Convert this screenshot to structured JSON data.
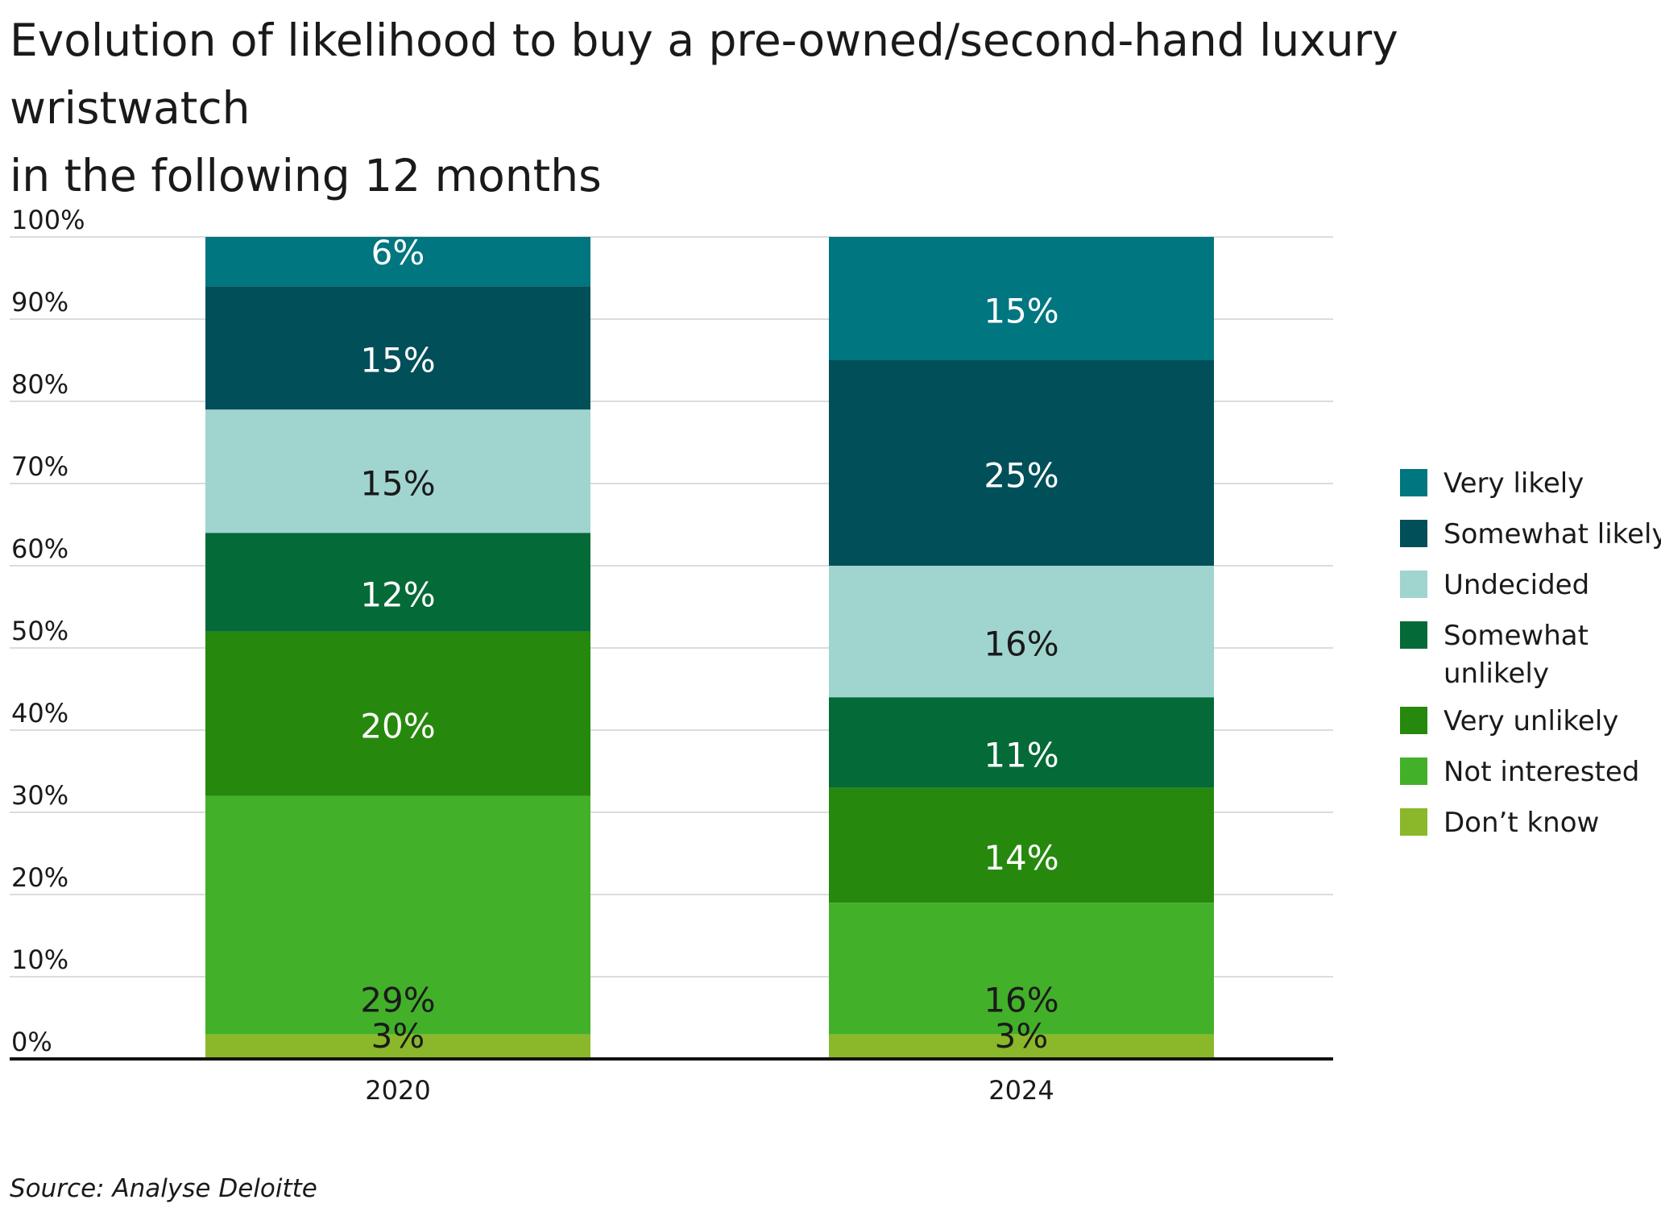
{
  "chart_data": {
    "type": "bar",
    "stacked": true,
    "title": "Evolution of likelihood to buy a pre-owned/second-hand luxury wristwatch in the following 12 months",
    "title_lines": [
      "Evolution of likelihood to buy a pre-owned/second-hand luxury wristwatch",
      "in the following 12 months"
    ],
    "xlabel": "",
    "ylabel": "",
    "categories": [
      "2020",
      "2024"
    ],
    "ylim": [
      0,
      100
    ],
    "yticks": [
      0,
      10,
      20,
      30,
      40,
      50,
      60,
      70,
      80,
      90,
      100
    ],
    "ytick_labels": [
      "0%",
      "10%",
      "20%",
      "30%",
      "40%",
      "50%",
      "60%",
      "70%",
      "80%",
      "90%",
      "100%"
    ],
    "grid": true,
    "legend_position": "right",
    "series": [
      {
        "name": "Don’t know",
        "values": [
          3,
          3
        ],
        "labels": [
          "3%",
          "3%"
        ],
        "color": "#8ab82a",
        "label_color": "#1a1a1a"
      },
      {
        "name": "Not interested",
        "values": [
          29,
          16
        ],
        "labels": [
          "29%",
          "16%"
        ],
        "color": "#43b02a",
        "label_color": "#1a1a1a"
      },
      {
        "name": "Very unlikely",
        "values": [
          20,
          14
        ],
        "labels": [
          "20%",
          "14%"
        ],
        "color": "#26890d",
        "label_color": "#ffffff"
      },
      {
        "name": "Somewhat unlikely",
        "values": [
          12,
          11
        ],
        "labels": [
          "12%",
          "11%"
        ],
        "color": "#046a38",
        "label_color": "#ffffff"
      },
      {
        "name": "Undecided",
        "values": [
          15,
          16
        ],
        "labels": [
          "15%",
          "16%"
        ],
        "color": "#a0d4cf",
        "label_color": "#1a1a1a"
      },
      {
        "name": "Somewhat likely",
        "values": [
          15,
          25
        ],
        "labels": [
          "15%",
          "25%"
        ],
        "color": "#004f59",
        "label_color": "#ffffff"
      },
      {
        "name": "Very likely",
        "values": [
          6,
          15
        ],
        "labels": [
          "6%",
          "15%"
        ],
        "color": "#007680",
        "label_color": "#ffffff"
      }
    ],
    "legend_order": [
      "Very likely",
      "Somewhat likely",
      "Undecided",
      "Somewhat unlikely",
      "Very unlikely",
      "Not interested",
      "Don’t know"
    ]
  },
  "source": "Source: Analyse Deloitte"
}
